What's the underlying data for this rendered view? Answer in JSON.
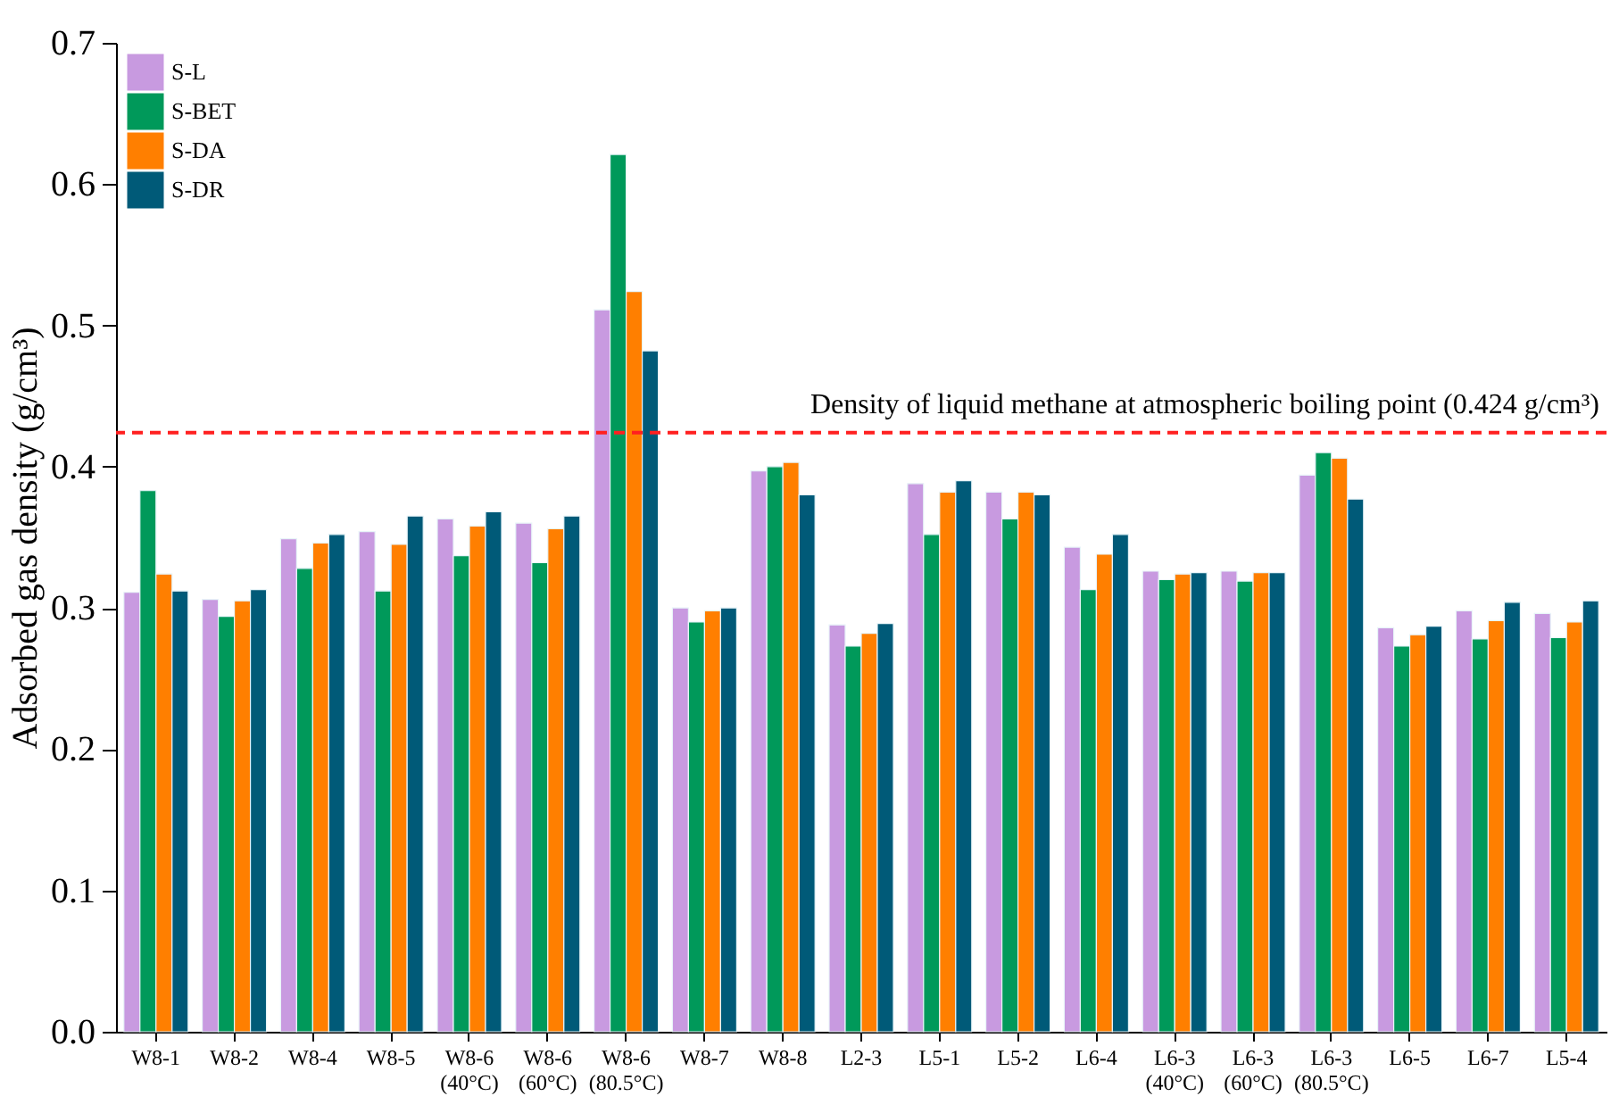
{
  "chart_data": {
    "type": "bar",
    "ylabel": "Adsorbed gas density (g/cm³)",
    "categories": [
      "W8-1",
      "W8-2",
      "W8-4",
      "W8-5",
      "W8-6\n(40°C)",
      "W8-6\n(60°C)",
      "W8-6\n(80.5°C)",
      "W8-7",
      "W8-8",
      "L2-3",
      "L5-1",
      "L5-2",
      "L6-4",
      "L6-3\n(40°C)",
      "L6-3\n(60°C)",
      "L6-3\n(80.5°C)",
      "L6-5",
      "L6-7",
      "L5-4"
    ],
    "series": [
      {
        "name": "S-L",
        "color": "#c89ae0",
        "values": [
          0.311,
          0.306,
          0.349,
          0.354,
          0.363,
          0.36,
          0.511,
          0.3,
          0.397,
          0.288,
          0.388,
          0.382,
          0.343,
          0.326,
          0.326,
          0.394,
          0.286,
          0.298,
          0.296
        ]
      },
      {
        "name": "S-BET",
        "color": "#00995a",
        "values": [
          0.383,
          0.294,
          0.328,
          0.312,
          0.337,
          0.332,
          0.621,
          0.29,
          0.4,
          0.273,
          0.352,
          0.363,
          0.313,
          0.32,
          0.319,
          0.41,
          0.273,
          0.278,
          0.279
        ]
      },
      {
        "name": "S-DA",
        "color": "#ff7f00",
        "values": [
          0.324,
          0.305,
          0.346,
          0.345,
          0.358,
          0.356,
          0.524,
          0.298,
          0.403,
          0.282,
          0.382,
          0.382,
          0.338,
          0.324,
          0.325,
          0.406,
          0.281,
          0.291,
          0.29
        ]
      },
      {
        "name": "S-DR",
        "color": "#005a78",
        "values": [
          0.312,
          0.313,
          0.352,
          0.365,
          0.368,
          0.365,
          0.482,
          0.3,
          0.38,
          0.289,
          0.39,
          0.38,
          0.352,
          0.325,
          0.325,
          0.377,
          0.287,
          0.304,
          0.305
        ]
      }
    ],
    "ylim": [
      0,
      0.7
    ],
    "yticks": [
      {
        "value": 0,
        "label": "0.0"
      },
      0.1,
      0.2,
      0.3,
      0.4,
      0.5,
      0.6,
      0.7
    ],
    "ref_lines": [
      {
        "axis": "y",
        "value": 0.424,
        "label": "Density of liquid methane at atmospheric boiling point (0.424 g/cm³)",
        "color": "#ff2020",
        "line_style": "dashed"
      }
    ],
    "legend": "top left",
    "grid": false
  }
}
